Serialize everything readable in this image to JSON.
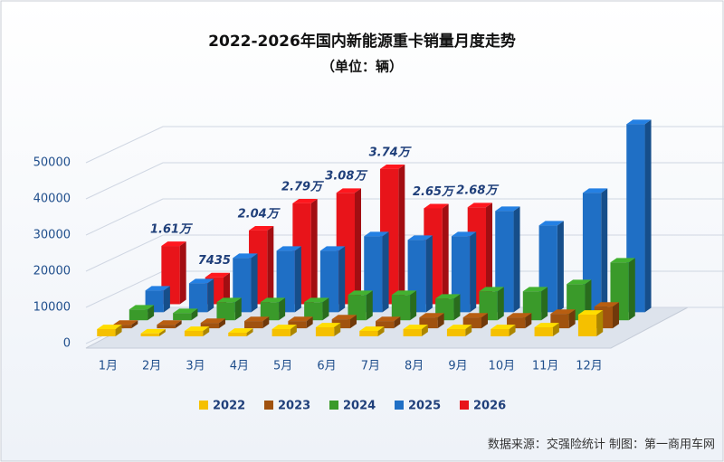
{
  "chart_data": {
    "type": "bar3d",
    "title": "2022-2026年国内新能源重卡销量月度走势",
    "subtitle": "（单位：辆）",
    "categories": [
      "1月",
      "2月",
      "3月",
      "4月",
      "5月",
      "6月",
      "7月",
      "8月",
      "9月",
      "10月",
      "11月",
      "12月"
    ],
    "series": [
      {
        "name": "2022",
        "color": "#f5c000",
        "values": [
          2000,
          800,
          1500,
          1000,
          2000,
          2500,
          1500,
          2000,
          2000,
          2000,
          2500,
          6000
        ]
      },
      {
        "name": "2023",
        "color": "#a0520f",
        "values": [
          1000,
          1000,
          1500,
          2000,
          2000,
          2500,
          2000,
          3000,
          3000,
          3000,
          4000,
          6000
        ]
      },
      {
        "name": "2024",
        "color": "#3a9a2a",
        "values": [
          3000,
          2000,
          5000,
          5000,
          5000,
          7000,
          7000,
          6000,
          8000,
          8000,
          10000,
          16000
        ]
      },
      {
        "name": "2025",
        "color": "#1f6fc5",
        "values": [
          6000,
          8000,
          15000,
          17000,
          17000,
          21000,
          20000,
          21000,
          28000,
          24000,
          33000,
          52000
        ]
      },
      {
        "name": "2026",
        "color": "#e8141a",
        "values": [
          16100,
          7435,
          20400,
          27900,
          30800,
          37400,
          26500,
          26800,
          null,
          null,
          null,
          null
        ],
        "value_labels": [
          "1.61万",
          "7435",
          "2.04万",
          "2.79万",
          "3.08万",
          "3.74万",
          "2.65万",
          "2.68万",
          null,
          null,
          null,
          null
        ]
      }
    ],
    "ylim": [
      0,
      60000
    ],
    "yticks": [
      0,
      10000,
      20000,
      30000,
      40000,
      50000
    ],
    "grid": true,
    "legend": "bottom",
    "source": "数据来源：交强险统计 制图：第一商用车网"
  }
}
